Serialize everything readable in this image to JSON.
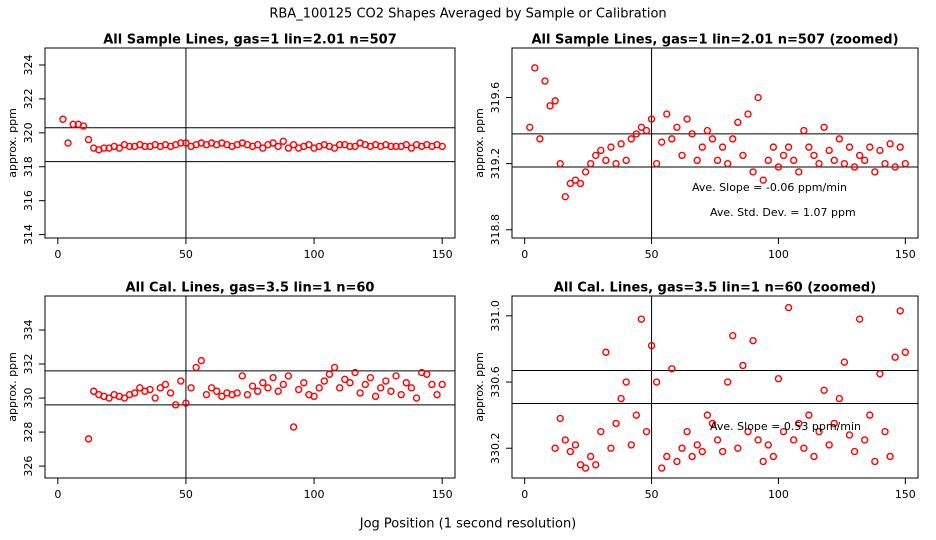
{
  "title": "RBA_100125  CO2 Shapes Averaged by Sample or Calibration",
  "xlabel": "Jog Position (1 second resolution)",
  "chart_data": [
    {
      "type": "scatter",
      "title": "All Sample Lines, gas=1 lin=2.01 n=507",
      "ylabel": "approx. ppm",
      "color": "#ff0000",
      "xlim": [
        -5,
        155
      ],
      "xticks": [
        0,
        50,
        100,
        150
      ],
      "ylim": [
        313.8,
        325
      ],
      "yticks": [
        314,
        316,
        318,
        320,
        322,
        324
      ],
      "hlines": [
        320.3,
        318.3
      ],
      "vlines": [
        50
      ],
      "x": [
        2,
        4,
        6,
        8,
        10,
        12,
        14,
        16,
        18,
        20,
        22,
        24,
        26,
        28,
        30,
        32,
        34,
        36,
        38,
        40,
        42,
        44,
        46,
        48,
        50,
        52,
        54,
        56,
        58,
        60,
        62,
        64,
        66,
        68,
        70,
        72,
        74,
        76,
        78,
        80,
        82,
        84,
        86,
        88,
        90,
        92,
        94,
        96,
        98,
        100,
        102,
        104,
        106,
        108,
        110,
        112,
        114,
        116,
        118,
        120,
        122,
        124,
        126,
        128,
        130,
        132,
        134,
        136,
        138,
        140,
        142,
        144,
        146,
        148,
        150
      ],
      "values": [
        320.8,
        319.4,
        320.5,
        320.5,
        320.4,
        319.6,
        319.1,
        319.0,
        319.1,
        319.1,
        319.2,
        319.1,
        319.3,
        319.2,
        319.2,
        319.3,
        319.2,
        319.2,
        319.3,
        319.2,
        319.3,
        319.2,
        319.3,
        319.4,
        319.4,
        319.2,
        319.3,
        319.4,
        319.3,
        319.4,
        319.3,
        319.4,
        319.3,
        319.2,
        319.3,
        319.4,
        319.3,
        319.2,
        319.3,
        319.1,
        319.3,
        319.4,
        319.2,
        319.5,
        319.1,
        319.3,
        319.1,
        319.2,
        319.3,
        319.1,
        319.2,
        319.3,
        319.2,
        319.1,
        319.3,
        319.3,
        319.2,
        319.2,
        319.4,
        319.3,
        319.2,
        319.3,
        319.2,
        319.3,
        319.2,
        319.2,
        319.2,
        319.3,
        319.1,
        319.3,
        319.2,
        319.3,
        319.2,
        319.3,
        319.2
      ]
    },
    {
      "type": "scatter",
      "title": "All Sample Lines, gas=1 lin=2.01 n=507 (zoomed)",
      "ylabel": "approx. ppm",
      "color": "#ff0000",
      "xlim": [
        -5,
        155
      ],
      "xticks": [
        0,
        50,
        100,
        150
      ],
      "ylim": [
        318.75,
        319.9
      ],
      "yticks": [
        318.8,
        319.2,
        319.6
      ],
      "hlines": [
        319.38,
        319.18
      ],
      "vlines": [
        50
      ],
      "annotations": [
        "Ave. Slope =  -0.06  ppm/min",
        "Ave. Std. Dev. =  1.07  ppm"
      ],
      "x": [
        2,
        4,
        6,
        8,
        10,
        12,
        14,
        16,
        18,
        20,
        22,
        24,
        26,
        28,
        30,
        32,
        34,
        36,
        38,
        40,
        42,
        44,
        46,
        48,
        50,
        52,
        54,
        56,
        58,
        60,
        62,
        64,
        66,
        68,
        70,
        72,
        74,
        76,
        78,
        80,
        82,
        84,
        86,
        88,
        90,
        92,
        94,
        96,
        98,
        100,
        102,
        104,
        106,
        108,
        110,
        112,
        114,
        116,
        118,
        120,
        122,
        124,
        126,
        128,
        130,
        132,
        134,
        136,
        138,
        140,
        142,
        144,
        146,
        148,
        150
      ],
      "values": [
        319.42,
        319.78,
        319.35,
        319.7,
        319.55,
        319.58,
        319.2,
        319.0,
        319.08,
        319.1,
        319.08,
        319.15,
        319.2,
        319.25,
        319.28,
        319.22,
        319.3,
        319.2,
        319.32,
        319.22,
        319.35,
        319.38,
        319.42,
        319.4,
        319.47,
        319.2,
        319.33,
        319.5,
        319.35,
        319.42,
        319.25,
        319.47,
        319.38,
        319.22,
        319.3,
        319.4,
        319.35,
        319.22,
        319.3,
        319.2,
        319.35,
        319.45,
        319.25,
        319.5,
        319.15,
        319.6,
        319.1,
        319.22,
        319.3,
        319.18,
        319.25,
        319.3,
        319.22,
        319.15,
        319.4,
        319.3,
        319.25,
        319.2,
        319.42,
        319.28,
        319.22,
        319.35,
        319.2,
        319.3,
        319.18,
        319.25,
        319.22,
        319.3,
        319.15,
        319.28,
        319.2,
        319.32,
        319.18,
        319.3,
        319.2
      ]
    },
    {
      "type": "scatter",
      "title": "All Cal. Lines, gas=3.5 lin=1 n=60",
      "ylabel": "approx. ppm",
      "color": "#ff0000",
      "xlim": [
        -5,
        155
      ],
      "xticks": [
        0,
        50,
        100,
        150
      ],
      "ylim": [
        325.3,
        336
      ],
      "yticks": [
        326,
        328,
        330,
        332,
        334
      ],
      "hlines": [
        331.6,
        329.6
      ],
      "vlines": [
        50
      ],
      "x": [
        12,
        14,
        16,
        18,
        20,
        22,
        24,
        26,
        28,
        30,
        32,
        34,
        36,
        38,
        40,
        42,
        44,
        46,
        48,
        50,
        52,
        54,
        56,
        58,
        60,
        62,
        64,
        66,
        68,
        70,
        72,
        74,
        76,
        78,
        80,
        82,
        84,
        86,
        88,
        90,
        92,
        94,
        96,
        98,
        100,
        102,
        104,
        106,
        108,
        110,
        112,
        114,
        116,
        118,
        120,
        122,
        124,
        126,
        128,
        130,
        132,
        134,
        136,
        138,
        140,
        142,
        144,
        146,
        148,
        150
      ],
      "values": [
        327.6,
        330.4,
        330.2,
        330.1,
        330.0,
        330.2,
        330.1,
        330.0,
        330.2,
        330.3,
        330.6,
        330.4,
        330.5,
        330.0,
        330.6,
        330.8,
        330.3,
        329.6,
        331.0,
        329.7,
        330.6,
        331.8,
        332.2,
        330.2,
        330.6,
        330.4,
        330.1,
        330.3,
        330.2,
        330.3,
        331.3,
        330.2,
        330.7,
        330.4,
        330.9,
        330.6,
        331.2,
        330.4,
        330.8,
        331.3,
        328.3,
        330.5,
        330.9,
        330.2,
        330.1,
        330.6,
        331.0,
        331.4,
        331.8,
        330.6,
        331.1,
        330.9,
        331.5,
        330.3,
        330.8,
        331.2,
        330.1,
        330.6,
        331.0,
        330.4,
        331.3,
        330.2,
        330.9,
        330.6,
        330.0,
        331.5,
        331.4,
        330.8,
        330.2,
        330.8
      ]
    },
    {
      "type": "scatter",
      "title": "All Cal. Lines, gas=3.5 lin=1 n=60 (zoomed)",
      "ylabel": "approx. ppm",
      "color": "#ff0000",
      "xlim": [
        -5,
        155
      ],
      "xticks": [
        0,
        50,
        100,
        150
      ],
      "ylim": [
        330.02,
        331.12
      ],
      "yticks": [
        330.2,
        330.6,
        {
          "value": 331,
          "label": "331.0"
        }
      ],
      "hlines": [
        330.67,
        330.47
      ],
      "vlines": [
        50
      ],
      "annotations": [
        "Ave. Slope =  0.53  ppm/min"
      ],
      "x": [
        12,
        14,
        16,
        18,
        20,
        22,
        24,
        26,
        28,
        30,
        32,
        34,
        36,
        38,
        40,
        42,
        44,
        46,
        48,
        50,
        52,
        54,
        56,
        58,
        60,
        62,
        64,
        66,
        68,
        70,
        72,
        74,
        76,
        78,
        80,
        82,
        84,
        86,
        88,
        90,
        92,
        94,
        96,
        98,
        100,
        102,
        104,
        106,
        108,
        110,
        112,
        114,
        116,
        118,
        120,
        122,
        124,
        126,
        128,
        130,
        132,
        134,
        136,
        138,
        140,
        142,
        144,
        146,
        148,
        150
      ],
      "values": [
        330.2,
        330.38,
        330.25,
        330.18,
        330.22,
        330.1,
        330.08,
        330.15,
        330.1,
        330.3,
        330.78,
        330.2,
        330.35,
        330.5,
        330.6,
        330.22,
        330.4,
        330.98,
        330.3,
        330.82,
        330.6,
        330.08,
        330.15,
        330.68,
        330.12,
        330.2,
        330.3,
        330.15,
        330.22,
        330.18,
        330.4,
        330.35,
        330.25,
        330.18,
        330.6,
        330.88,
        330.2,
        330.7,
        330.3,
        330.85,
        330.25,
        330.12,
        330.22,
        330.15,
        330.62,
        330.3,
        331.05,
        330.25,
        330.35,
        330.2,
        330.4,
        330.15,
        330.3,
        330.55,
        330.22,
        330.35,
        330.5,
        330.72,
        330.28,
        330.18,
        330.98,
        330.25,
        330.4,
        330.12,
        330.65,
        330.3,
        330.15,
        330.75,
        331.03,
        330.78
      ]
    }
  ]
}
